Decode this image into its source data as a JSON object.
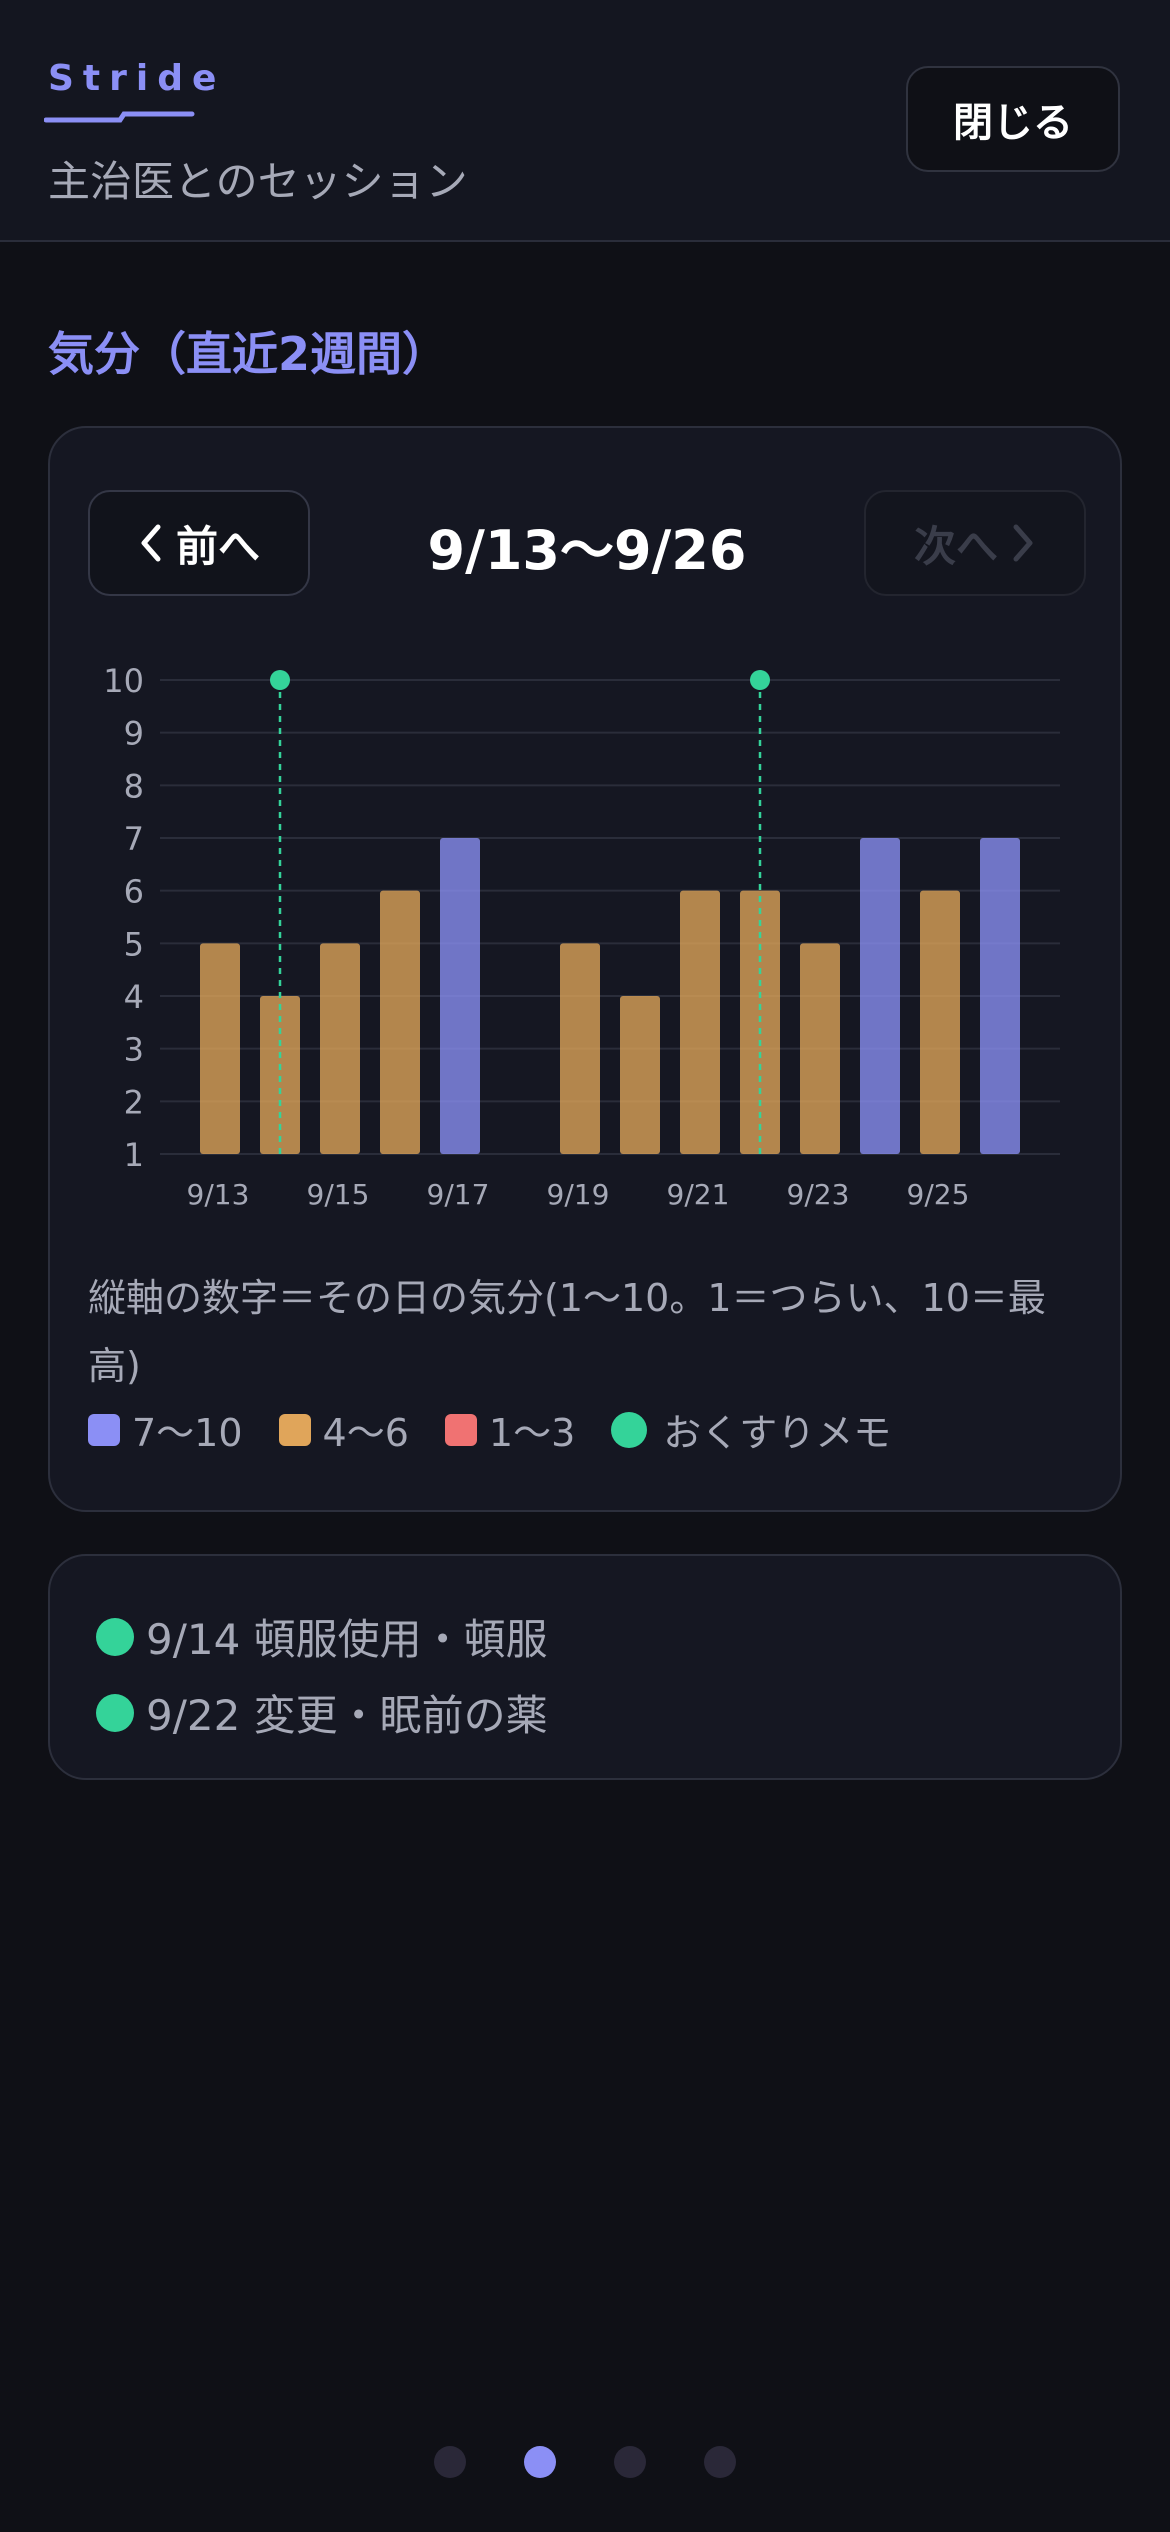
{
  "header": {
    "brand": "Stride",
    "subtitle": "主治医とのセッション",
    "close_label": "閉じる"
  },
  "section_title": "気分（直近2週間）",
  "period": {
    "prev_label": "前へ",
    "next_label": "次へ",
    "range": "9/13〜9/26",
    "next_enabled": false
  },
  "chart_data": {
    "type": "bar",
    "categories": [
      "9/13",
      "9/14",
      "9/15",
      "9/16",
      "9/17",
      "9/18",
      "9/19",
      "9/20",
      "9/21",
      "9/22",
      "9/23",
      "9/24",
      "9/25",
      "9/26"
    ],
    "values": [
      5,
      4,
      5,
      6,
      7,
      null,
      5,
      4,
      6,
      6,
      5,
      7,
      6,
      7
    ],
    "x_tick_labels": [
      "9/13",
      "9/15",
      "9/17",
      "9/19",
      "9/21",
      "9/23",
      "9/25"
    ],
    "y_ticks": [
      1,
      2,
      3,
      4,
      5,
      6,
      7,
      8,
      9,
      10
    ],
    "ylim": [
      1,
      10
    ],
    "grid": true,
    "color_bands": [
      {
        "range": "7〜10",
        "min": 7,
        "max": 10,
        "color": "#8b8ff5"
      },
      {
        "range": "4〜6",
        "min": 4,
        "max": 6,
        "color": "#e0a55a"
      },
      {
        "range": "1〜3",
        "min": 1,
        "max": 3,
        "color": "#f07272"
      }
    ],
    "medication_memo_dates": [
      "9/14",
      "9/22"
    ],
    "memo_color": "#34d399"
  },
  "note": "縦軸の数字＝その日の気分(1〜10。1＝つらい、10＝最高)",
  "legend": {
    "high": "7〜10",
    "mid": "4〜6",
    "low": "1〜3",
    "memo": "おくすりメモ"
  },
  "memos": [
    {
      "text": "9/14 頓服使用・頓服"
    },
    {
      "text": "9/22 変更・眠前の薬"
    }
  ],
  "pager": {
    "count": 4,
    "active": 1
  },
  "colors": {
    "accent": "#8b8ff5",
    "high": "#8b8ff5",
    "mid": "#e0a55a",
    "low": "#f07272",
    "memo": "#34d399"
  }
}
